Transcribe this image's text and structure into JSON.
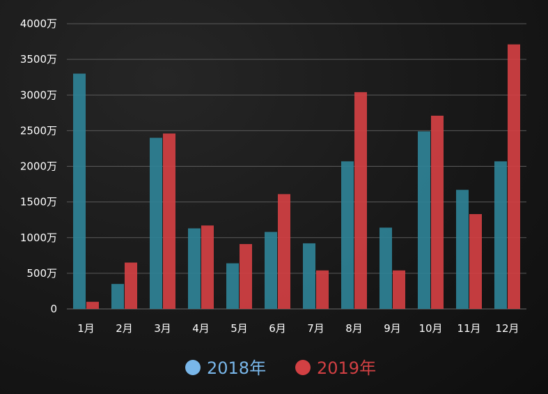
{
  "colors": {
    "series_2018": "#2f8296",
    "series_2019": "#d24043",
    "legend_2018": "#79b7ea",
    "legend_2019": "#d24043",
    "grid": "#5a5a5a",
    "text": "#ffffff"
  },
  "chart_data": {
    "type": "bar",
    "categories": [
      "1月",
      "2月",
      "3月",
      "4月",
      "5月",
      "6月",
      "7月",
      "8月",
      "9月",
      "10月",
      "11月",
      "12月"
    ],
    "series": [
      {
        "name": "2018年",
        "values": [
          3300,
          350,
          2400,
          1130,
          640,
          1080,
          920,
          2070,
          1140,
          2490,
          1670,
          2070
        ]
      },
      {
        "name": "2019年",
        "values": [
          100,
          650,
          2460,
          1170,
          910,
          1610,
          540,
          3040,
          540,
          2710,
          1330,
          3710
        ]
      }
    ],
    "y_ticks": [
      "0",
      "500万",
      "1000万",
      "1500万",
      "2000万",
      "2500万",
      "3000万",
      "3500万",
      "4000万"
    ],
    "ylim": [
      0,
      4000
    ],
    "y_tick_step": 500,
    "grid": true,
    "legend_position": "bottom-center",
    "title": "",
    "xlabel": "",
    "ylabel": ""
  }
}
